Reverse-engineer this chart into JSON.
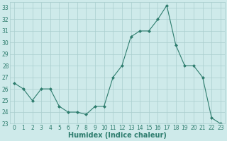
{
  "x": [
    0,
    1,
    2,
    3,
    4,
    5,
    6,
    7,
    8,
    9,
    10,
    11,
    12,
    13,
    14,
    15,
    16,
    17,
    18,
    19,
    20,
    21,
    22,
    23
  ],
  "y": [
    26.5,
    26.0,
    25.0,
    26.0,
    26.0,
    24.5,
    24.0,
    24.0,
    23.8,
    24.5,
    24.5,
    27.0,
    28.0,
    30.5,
    31.0,
    31.0,
    32.0,
    33.2,
    29.8,
    28.0,
    28.0,
    27.0,
    23.5,
    23.0
  ],
  "line_color": "#2e7d6e",
  "marker": "D",
  "marker_size": 2.0,
  "bg_color": "#ceeaea",
  "grid_color": "#aacece",
  "xlabel": "Humidex (Indice chaleur)",
  "xlim": [
    -0.5,
    23.5
  ],
  "ylim": [
    23,
    33.5
  ],
  "yticks": [
    23,
    24,
    25,
    26,
    27,
    28,
    29,
    30,
    31,
    32,
    33
  ],
  "xticks": [
    0,
    1,
    2,
    3,
    4,
    5,
    6,
    7,
    8,
    9,
    10,
    11,
    12,
    13,
    14,
    15,
    16,
    17,
    18,
    19,
    20,
    21,
    22,
    23
  ],
  "tick_labelsize": 5.5,
  "xlabel_fontsize": 7.0,
  "label_color": "#2e7d6e"
}
